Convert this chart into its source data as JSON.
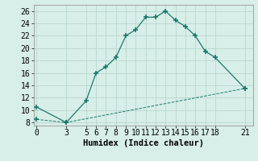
{
  "line1_x": [
    0,
    3,
    5,
    6,
    7,
    8,
    9,
    10,
    11,
    12,
    13,
    14,
    15,
    16,
    17,
    18,
    21
  ],
  "line1_y": [
    10.5,
    8.0,
    11.5,
    16.0,
    17.0,
    18.5,
    22.0,
    23.0,
    25.0,
    25.0,
    26.0,
    24.5,
    23.5,
    22.0,
    19.5,
    18.5,
    13.5
  ],
  "line2_x": [
    0,
    3,
    21
  ],
  "line2_y": [
    8.5,
    8.0,
    13.5
  ],
  "line_color": "#1a7a6a",
  "bg_color": "#d8eee8",
  "grid_color": "#b8d8d0",
  "xlabel": "Humidex (Indice chaleur)",
  "xticks": [
    0,
    3,
    5,
    6,
    7,
    8,
    9,
    10,
    11,
    12,
    13,
    14,
    15,
    16,
    17,
    18,
    21
  ],
  "yticks": [
    8,
    10,
    12,
    14,
    16,
    18,
    20,
    22,
    24,
    26
  ],
  "ylim": [
    7.5,
    27.0
  ],
  "xlim": [
    -0.3,
    21.8
  ],
  "marker": "+",
  "marker_size": 4,
  "font_size": 7.5
}
